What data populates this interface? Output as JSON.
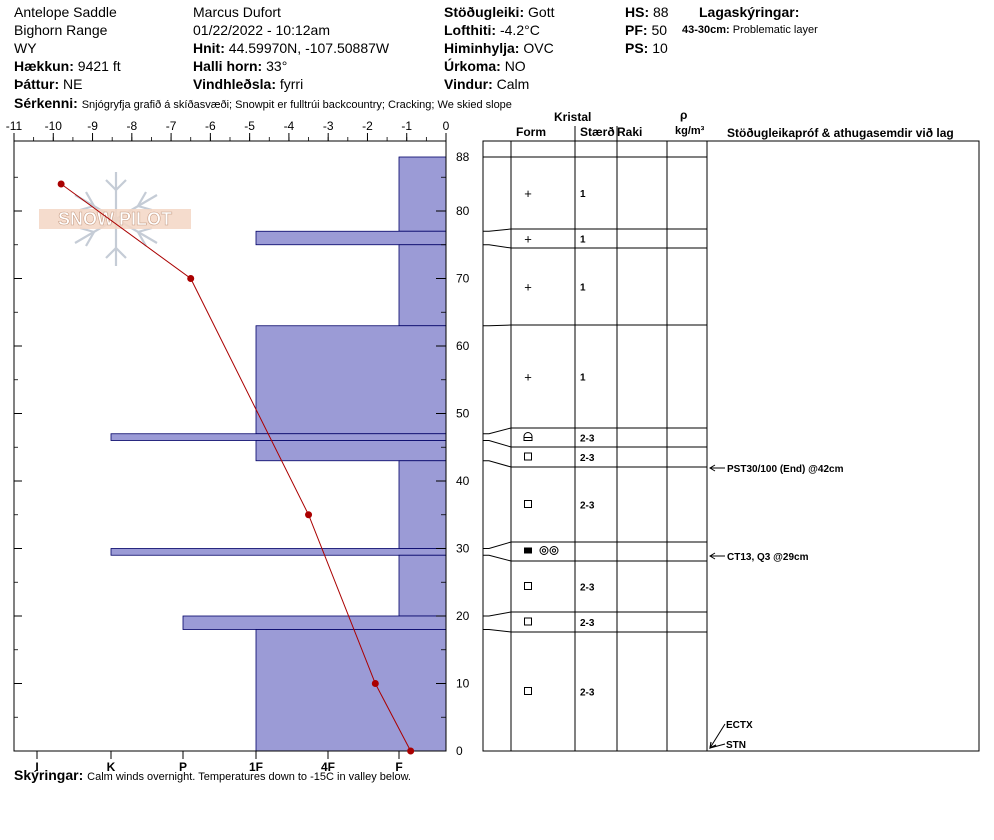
{
  "header": {
    "location": "Antelope Saddle",
    "range": "Bighorn Range",
    "state": "WY",
    "elevation": {
      "label": "Hækkun:",
      "value": "9421 ft"
    },
    "aspect": {
      "label": "Þáttur:",
      "value": "NE"
    },
    "observer": "Marcus Dufort",
    "datetime": "01/22/2022 - 10:12am",
    "coords": {
      "label": "Hnit:",
      "value": "44.59970N, -107.50887W"
    },
    "slope": {
      "label": "Halli horn:",
      "value": "33°"
    },
    "wind_loading": {
      "label": "Vindhleðsla:",
      "value": "fyrri"
    },
    "stability": {
      "label": "Stöðugleiki:",
      "value": "Gott"
    },
    "air_temp": {
      "label": "Lofthiti:",
      "value": "-4.2°C"
    },
    "sky": {
      "label": "Himinhylja:",
      "value": "OVC"
    },
    "precip": {
      "label": "Úrkoma:",
      "value": "NO"
    },
    "wind": {
      "label": "Vindur:",
      "value": "Calm"
    },
    "hs": {
      "label": "HS:",
      "value": "88"
    },
    "pf": {
      "label": "PF:",
      "value": "50"
    },
    "ps": {
      "label": "PS:",
      "value": "10"
    },
    "layer_notes_title": "Lagaskýringar:",
    "layer_note": {
      "range": "43-30cm:",
      "text": "Problematic layer"
    },
    "features": {
      "label": "Sérkenni:",
      "value": "Snjógryfja grafið á skíðasvæði;  Snowpit er fulltrúi backcountry;  Cracking;  We skied slope"
    }
  },
  "footer": {
    "label": "Skýringar:",
    "value": "Calm winds overnight.  Temperatures down to -15C in valley below."
  },
  "table": {
    "kristal": "Kristal",
    "form": "Form",
    "size": "Stærð",
    "moisture": "Raki",
    "rho": "ρ",
    "density_unit": "kg/m³",
    "tests_header": "Stöðugleikapróf & athugasemdir við lag"
  },
  "logo_text": "SNOW PILOT",
  "colors": {
    "hardness_fill": "#9b9bd6",
    "temp_line": "#aa0000"
  },
  "chart_data": {
    "type": "snow-profile",
    "temp_axis": {
      "ticks": [
        "-11",
        "-10",
        "-9",
        "-8",
        "-7",
        "-6",
        "-5",
        "-4",
        "-3",
        "-2",
        "-1",
        "0"
      ],
      "min": -11,
      "max": 0
    },
    "hardness_axis": {
      "ticks": [
        "I",
        "K",
        "P",
        "1F",
        "4F",
        "F"
      ]
    },
    "depth_axis": {
      "ticks": [
        "0",
        "10",
        "20",
        "30",
        "40",
        "50",
        "60",
        "70",
        "80"
      ],
      "min": 0,
      "max": 88,
      "top_label": "88"
    },
    "hardness_layers": [
      {
        "top": 88,
        "bottom": 77,
        "hardness": "F"
      },
      {
        "top": 77,
        "bottom": 75,
        "hardness": "1F"
      },
      {
        "top": 75,
        "bottom": 63,
        "hardness": "F"
      },
      {
        "top": 63,
        "bottom": 47,
        "hardness": "1F"
      },
      {
        "top": 47,
        "bottom": 46,
        "hardness": "K"
      },
      {
        "top": 46,
        "bottom": 43,
        "hardness": "1F"
      },
      {
        "top": 43,
        "bottom": 30,
        "hardness": "F"
      },
      {
        "top": 30,
        "bottom": 29,
        "hardness": "K"
      },
      {
        "top": 29,
        "bottom": 20,
        "hardness": "F"
      },
      {
        "top": 20,
        "bottom": 18,
        "hardness": "P"
      },
      {
        "top": 18,
        "bottom": 0,
        "hardness": "1F"
      }
    ],
    "temperature_profile": [
      {
        "depth": 84,
        "temp": -9.8
      },
      {
        "depth": 70,
        "temp": -6.5
      },
      {
        "depth": 35,
        "temp": -3.5
      },
      {
        "depth": 10,
        "temp": -1.8
      },
      {
        "depth": 0,
        "temp": -0.9
      }
    ],
    "layers": [
      {
        "top": 88,
        "bottom": 77,
        "form": "+",
        "size": "1"
      },
      {
        "top": 77,
        "bottom": 75,
        "form": "+",
        "size": "1"
      },
      {
        "top": 75,
        "bottom": 63,
        "form": "+",
        "size": "1"
      },
      {
        "top": 63,
        "bottom": 47,
        "form": "+",
        "size": "1"
      },
      {
        "top": 47,
        "bottom": 46,
        "form": "surface-hoar",
        "size": "2-3"
      },
      {
        "top": 46,
        "bottom": 43,
        "form": "□",
        "size": "2-3"
      },
      {
        "top": 43,
        "bottom": 30,
        "form": "□",
        "size": "2-3"
      },
      {
        "top": 30,
        "bottom": 29,
        "form": "■ ◎◎",
        "size": ""
      },
      {
        "top": 29,
        "bottom": 20,
        "form": "□",
        "size": "2-3"
      },
      {
        "top": 20,
        "bottom": 18,
        "form": "□",
        "size": "2-3"
      },
      {
        "top": 18,
        "bottom": 0,
        "form": "□",
        "size": "2-3"
      }
    ],
    "tests": [
      {
        "depth": 42,
        "text": "PST30/100 (End) @42cm"
      },
      {
        "depth": 29,
        "text": "CT13, Q3 @29cm"
      },
      {
        "depth": 4,
        "text": "ECTX"
      },
      {
        "depth": 1,
        "text": "STN"
      }
    ]
  }
}
